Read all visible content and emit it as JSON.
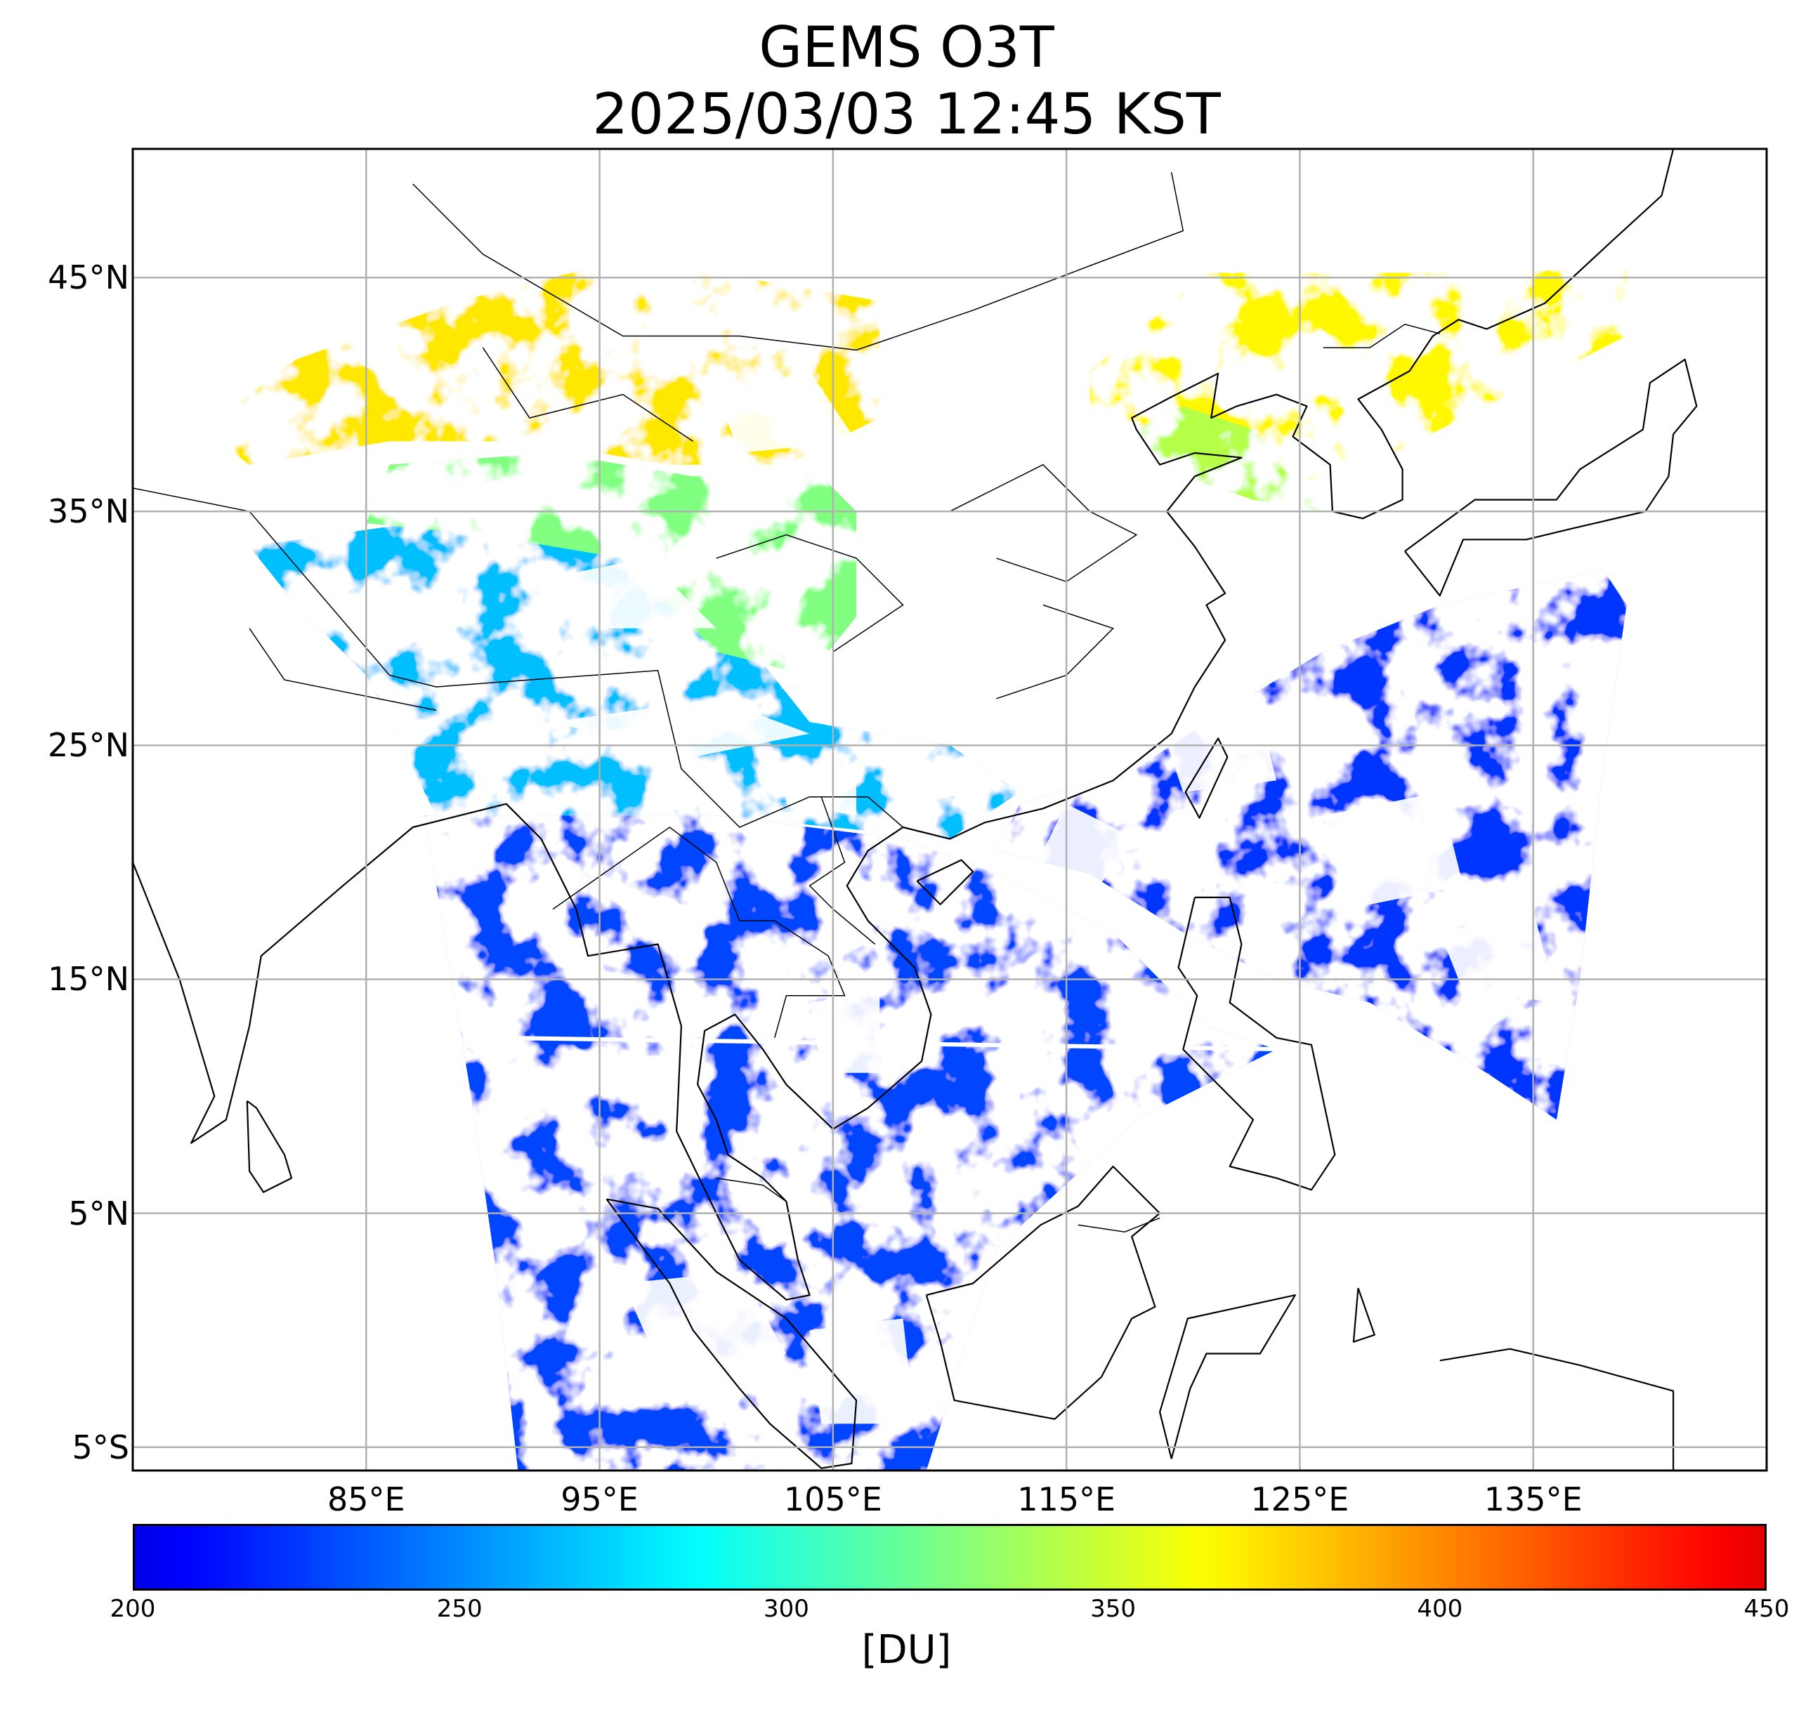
{
  "title": {
    "line1": "GEMS O3T",
    "line2": "2025/03/03 12:45 KST"
  },
  "map": {
    "lon_range": [
      75,
      145
    ],
    "lat_range": [
      -6,
      50.5
    ],
    "grid": true,
    "lat_ticks": [
      {
        "value": 45,
        "label": "45°N"
      },
      {
        "value": 35,
        "label": "35°N"
      },
      {
        "value": 25,
        "label": "25°N"
      },
      {
        "value": 15,
        "label": "15°N"
      },
      {
        "value": 5,
        "label": "5°N"
      },
      {
        "value": -5,
        "label": "5°S"
      }
    ],
    "lon_ticks": [
      {
        "value": 85,
        "label": "85°E"
      },
      {
        "value": 95,
        "label": "95°E"
      },
      {
        "value": 105,
        "label": "105°E"
      },
      {
        "value": 115,
        "label": "115°E"
      },
      {
        "value": 125,
        "label": "125°E"
      },
      {
        "value": 135,
        "label": "135°E"
      }
    ],
    "colors": {
      "land_outline": "#000000",
      "grid": "#b0b0b0",
      "background": "#ffffff"
    }
  },
  "colorbar": {
    "colormap": "jet",
    "min": 200,
    "max": 450,
    "ticks": [
      "200",
      "250",
      "300",
      "350",
      "400",
      "450"
    ],
    "unit": "[DU]"
  }
}
